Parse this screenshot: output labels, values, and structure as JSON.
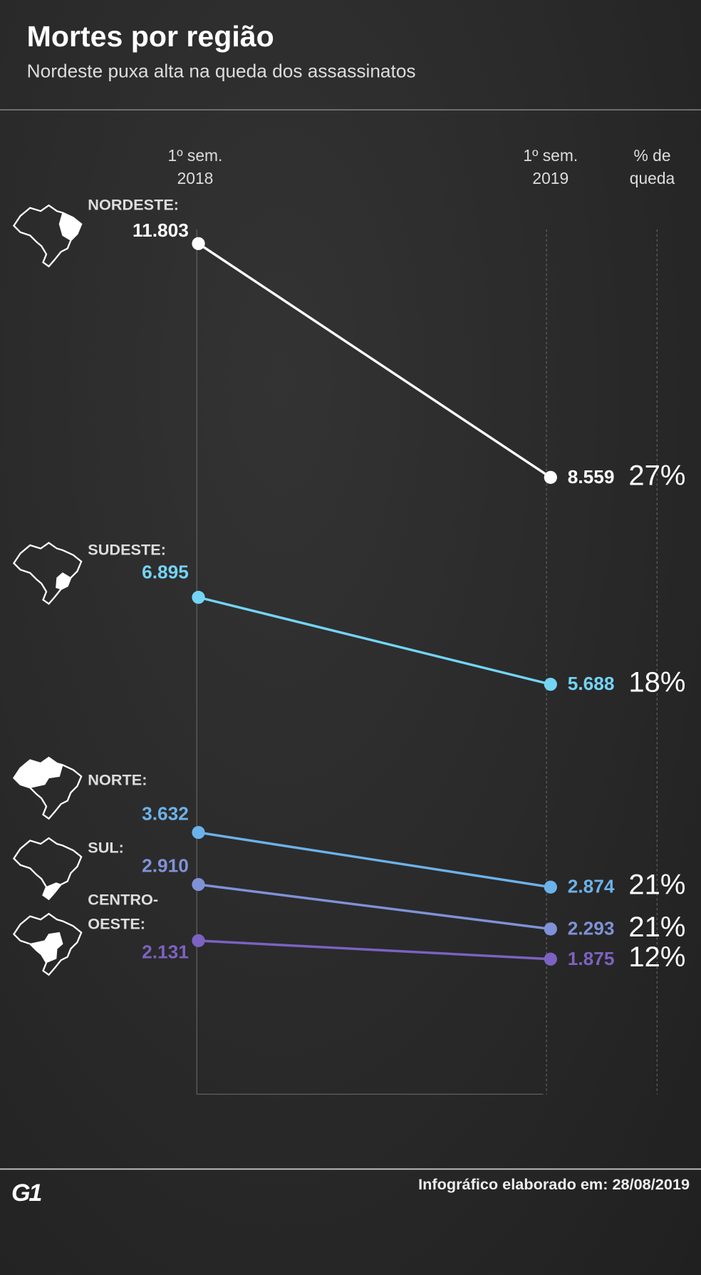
{
  "chart_data": {
    "type": "line",
    "title": "Mortes por região",
    "subtitle": "Nordeste puxa alta na queda dos assassinatos",
    "categories": [
      "1º sem. 2018",
      "1º sem. 2019"
    ],
    "drop_header": "% de queda",
    "ylim": [
      0,
      12000
    ],
    "series": [
      {
        "name": "NORDESTE:",
        "color": "#ffffff",
        "values": [
          11803,
          8559
        ],
        "value_labels": [
          "11.803",
          "8.559"
        ],
        "drop": {
          "value": 27,
          "label": "27%"
        }
      },
      {
        "name": "SUDESTE:",
        "color": "#74d4f6",
        "values": [
          6895,
          5688
        ],
        "value_labels": [
          "6.895",
          "5.688"
        ],
        "drop": {
          "value": 18,
          "label": "18%"
        }
      },
      {
        "name": "NORTE:",
        "color": "#6cb2ea",
        "values": [
          3632,
          2874
        ],
        "value_labels": [
          "3.632",
          "2.874"
        ],
        "drop": {
          "value": 21,
          "label": "21%"
        }
      },
      {
        "name": "SUL:",
        "color": "#7f92d8",
        "values": [
          2910,
          2293
        ],
        "value_labels": [
          "2.910",
          "2.293"
        ],
        "drop": {
          "value": 21,
          "label": "21%"
        }
      },
      {
        "name": "CENTRO-OESTE:",
        "color": "#7c62c2",
        "values": [
          2131,
          1875
        ],
        "value_labels": [
          "2.131",
          "1.875"
        ],
        "drop": {
          "value": 12,
          "label": "12%"
        }
      }
    ],
    "source": "Infográfico elaborado em: 28/08/2019",
    "logo": "G1"
  }
}
